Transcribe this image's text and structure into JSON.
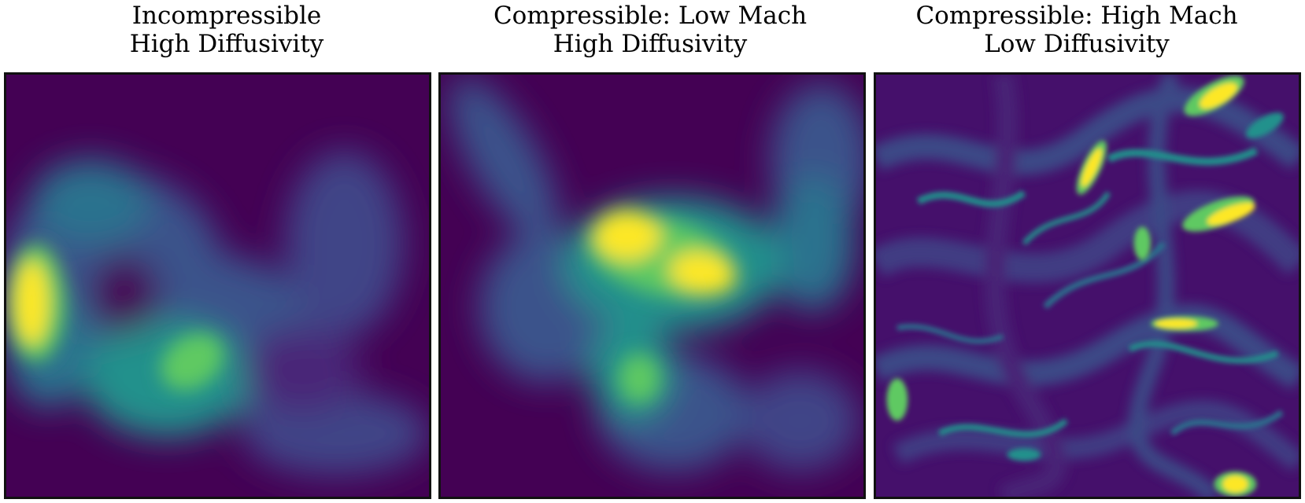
{
  "panels": [
    {
      "title_line1": "Incompressible",
      "title_line2": "High Diffusivity"
    },
    {
      "title_line1": "Compressible: Low Mach",
      "title_line2": "High Diffusivity"
    },
    {
      "title_line1": "Compressible: High Mach",
      "title_line2": "Low Diffusivity"
    }
  ],
  "colormap": [
    "#440154",
    "#3b528b",
    "#21918c",
    "#5ec962",
    "#fde725"
  ]
}
